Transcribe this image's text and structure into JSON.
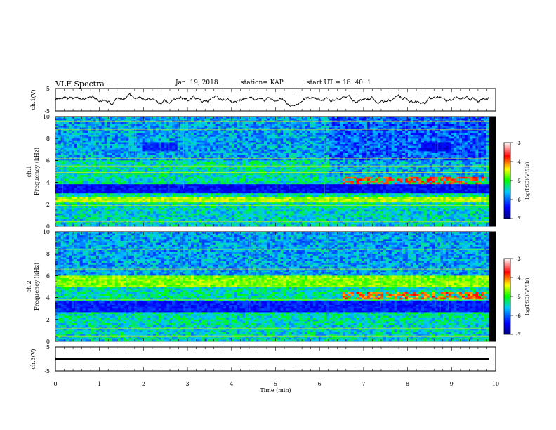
{
  "header": {
    "title": "VLF Spectra",
    "date": "Jan. 19, 2018",
    "station": "station= KAP",
    "start": "start  UT =   16: 40: 1"
  },
  "chart_data": [
    {
      "type": "line",
      "name": "ch1-waveform",
      "ylabel": "ch.1(V)",
      "ylim": [
        -5,
        5
      ],
      "y_ticks": [
        "5",
        "-5"
      ],
      "xlim": [
        0,
        9.85
      ],
      "description_values": {
        "mean": 0,
        "amplitude_approx": 1.5
      }
    },
    {
      "type": "heatmap",
      "name": "ch1-spectrogram",
      "ylabel": "ch.1\nFrequency (kHz)",
      "ylim": [
        0,
        10
      ],
      "y_ticks": [
        "0",
        "2",
        "4",
        "6",
        "8",
        "10"
      ],
      "xlim": [
        0,
        9.85
      ],
      "colorbar": {
        "label": "log(PSD)(V²/Hz)",
        "range": [
          -7,
          -3
        ],
        "ticks": [
          "-3",
          "-4",
          "-5",
          "-6",
          "-7"
        ]
      },
      "features": [
        {
          "band_khz": [
            3.0,
            3.8
          ],
          "level": -6.4,
          "note": "strong dark attenuation band"
        },
        {
          "band_khz": [
            2.2,
            2.6
          ],
          "level": -4.6,
          "note": "bright band"
        },
        {
          "band_khz": [
            6.8,
            7.6
          ],
          "level": -6.2,
          "note": "dark band during 2.0-2.8 min and 8.3-9.0 min"
        },
        {
          "event": "chorus-like emissions",
          "time_min": [
            6.5,
            9.8
          ],
          "freq_khz": [
            3.8,
            4.5
          ],
          "level": -3.8
        }
      ]
    },
    {
      "type": "heatmap",
      "name": "ch2-spectrogram",
      "ylabel": "ch.2\nFrequency (kHz)",
      "ylim": [
        0,
        10
      ],
      "y_ticks": [
        "0",
        "2",
        "4",
        "6",
        "8",
        "10"
      ],
      "xlim": [
        0,
        9.85
      ],
      "colorbar": {
        "label": "log(PSD)(V²/Hz)",
        "range": [
          -7,
          -3
        ],
        "ticks": [
          "-3",
          "-4",
          "-5",
          "-6",
          "-7"
        ]
      },
      "features": [
        {
          "band_khz": [
            5.0,
            6.0
          ],
          "level": -4.7,
          "note": "bright band"
        },
        {
          "band_khz": [
            2.6,
            3.6
          ],
          "level": -6.3,
          "note": "dark band"
        },
        {
          "event": "emissions",
          "time_min": [
            6.5,
            9.8
          ],
          "freq_khz": [
            3.8,
            4.5
          ],
          "level": -4.0
        }
      ]
    },
    {
      "type": "line",
      "name": "ch3-waveform",
      "ylabel": "ch.3(V)",
      "ylim": [
        -5,
        5
      ],
      "y_ticks": [
        "5",
        "-5"
      ],
      "xlim": [
        0,
        9.85
      ],
      "description_values": {
        "mean": 0,
        "amplitude_approx": 0
      }
    }
  ],
  "xaxis": {
    "label": "Time (min)",
    "ticks": [
      "0",
      "1",
      "2",
      "3",
      "4",
      "5",
      "6",
      "7",
      "8",
      "9",
      "10"
    ],
    "range": [
      0,
      10
    ]
  }
}
